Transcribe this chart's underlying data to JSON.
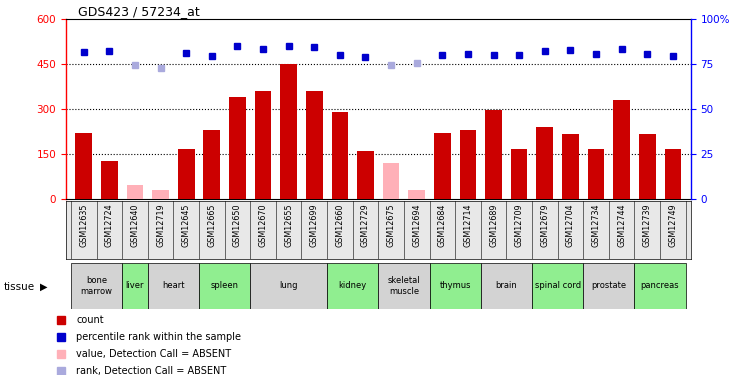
{
  "title": "GDS423 / 57234_at",
  "samples": [
    "GSM12635",
    "GSM12724",
    "GSM12640",
    "GSM12719",
    "GSM12645",
    "GSM12665",
    "GSM12650",
    "GSM12670",
    "GSM12655",
    "GSM12699",
    "GSM12660",
    "GSM12729",
    "GSM12675",
    "GSM12694",
    "GSM12684",
    "GSM12714",
    "GSM12689",
    "GSM12709",
    "GSM12679",
    "GSM12704",
    "GSM12734",
    "GSM12744",
    "GSM12739",
    "GSM12749"
  ],
  "bar_values": [
    220,
    125,
    45,
    30,
    165,
    230,
    340,
    360,
    450,
    360,
    290,
    160,
    120,
    30,
    220,
    230,
    295,
    165,
    240,
    215,
    165,
    330,
    215,
    165
  ],
  "bar_absent": [
    false,
    false,
    true,
    true,
    false,
    false,
    false,
    false,
    false,
    false,
    false,
    false,
    true,
    true,
    false,
    false,
    false,
    false,
    false,
    false,
    false,
    false,
    false,
    false
  ],
  "rank_values": [
    490,
    492,
    447,
    437,
    487,
    475,
    510,
    500,
    510,
    505,
    480,
    472,
    447,
    453,
    478,
    483,
    478,
    478,
    493,
    497,
    484,
    498,
    482,
    475
  ],
  "rank_absent": [
    false,
    false,
    true,
    true,
    false,
    false,
    false,
    false,
    false,
    false,
    false,
    false,
    true,
    true,
    false,
    false,
    false,
    false,
    false,
    false,
    false,
    false,
    false,
    false
  ],
  "tissues": [
    {
      "label": "bone\nmarrow",
      "start": 0,
      "end": 2,
      "color": "#d3d3d3"
    },
    {
      "label": "liver",
      "start": 2,
      "end": 3,
      "color": "#90ee90"
    },
    {
      "label": "heart",
      "start": 3,
      "end": 5,
      "color": "#d3d3d3"
    },
    {
      "label": "spleen",
      "start": 5,
      "end": 7,
      "color": "#90ee90"
    },
    {
      "label": "lung",
      "start": 7,
      "end": 10,
      "color": "#d3d3d3"
    },
    {
      "label": "kidney",
      "start": 10,
      "end": 12,
      "color": "#90ee90"
    },
    {
      "label": "skeletal\nmuscle",
      "start": 12,
      "end": 14,
      "color": "#d3d3d3"
    },
    {
      "label": "thymus",
      "start": 14,
      "end": 16,
      "color": "#90ee90"
    },
    {
      "label": "brain",
      "start": 16,
      "end": 18,
      "color": "#d3d3d3"
    },
    {
      "label": "spinal cord",
      "start": 18,
      "end": 20,
      "color": "#90ee90"
    },
    {
      "label": "prostate",
      "start": 20,
      "end": 22,
      "color": "#d3d3d3"
    },
    {
      "label": "pancreas",
      "start": 22,
      "end": 24,
      "color": "#90ee90"
    }
  ],
  "left_ylim": [
    0,
    600
  ],
  "right_ylim": [
    0,
    600
  ],
  "left_yticks": [
    0,
    150,
    300,
    450,
    600
  ],
  "right_yticks": [
    0,
    150,
    300,
    450,
    600
  ],
  "right_yticklabels": [
    "0",
    "25",
    "50",
    "75",
    "100%"
  ],
  "dotted_lines": [
    150,
    300,
    450
  ],
  "bar_color": "#cc0000",
  "absent_bar_color": "#ffb0b8",
  "rank_color": "#0000cc",
  "absent_rank_color": "#aaaadd",
  "legend_items": [
    {
      "label": "count",
      "color": "#cc0000"
    },
    {
      "label": "percentile rank within the sample",
      "color": "#0000cc"
    },
    {
      "label": "value, Detection Call = ABSENT",
      "color": "#ffb0b8"
    },
    {
      "label": "rank, Detection Call = ABSENT",
      "color": "#aaaadd"
    }
  ]
}
